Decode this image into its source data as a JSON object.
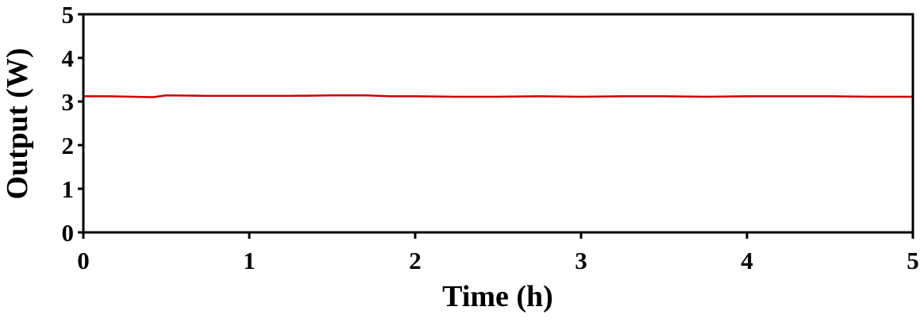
{
  "chart_data": {
    "type": "line",
    "x_label": "Time (h)",
    "y_label": "Output (W)",
    "x": [
      0,
      0.15,
      0.3,
      0.42,
      0.5,
      0.75,
      1.0,
      1.25,
      1.5,
      1.7,
      1.85,
      2.0,
      2.25,
      2.5,
      2.75,
      3.0,
      3.25,
      3.5,
      3.75,
      4.0,
      4.25,
      4.5,
      4.75,
      5.0
    ],
    "values": [
      3.12,
      3.12,
      3.11,
      3.1,
      3.14,
      3.13,
      3.13,
      3.13,
      3.14,
      3.14,
      3.12,
      3.12,
      3.11,
      3.11,
      3.12,
      3.11,
      3.12,
      3.12,
      3.11,
      3.12,
      3.12,
      3.12,
      3.11,
      3.11
    ],
    "color": "#cc0000",
    "xlim": [
      0,
      5
    ],
    "xticks": [
      0,
      1,
      2,
      3,
      4,
      5
    ],
    "ylim": [
      0,
      5
    ],
    "yticks": [
      0,
      1,
      2,
      3,
      4,
      5
    ]
  }
}
